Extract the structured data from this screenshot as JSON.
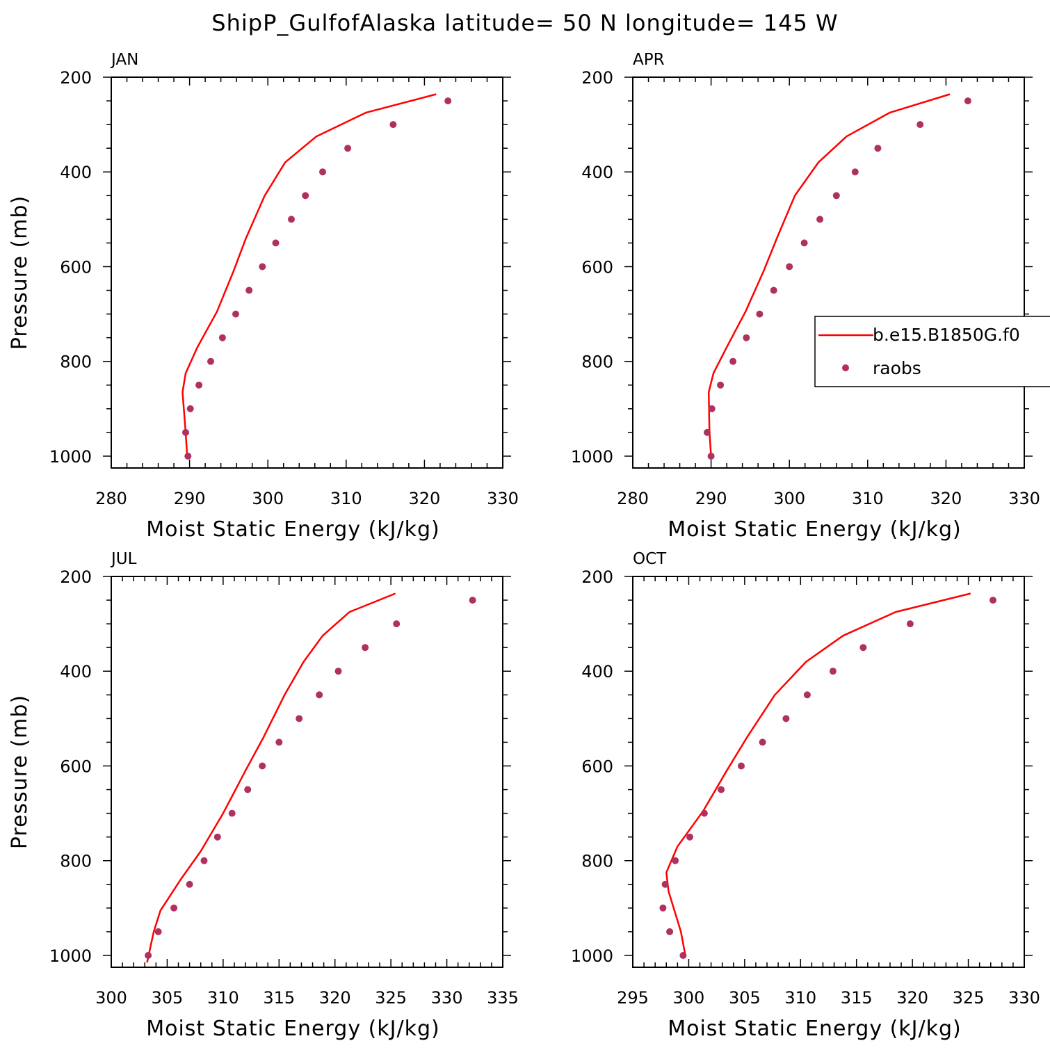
{
  "title": "ShipP_GulfofAlaska  latitude= 50 N longitude= 145 W",
  "colors": {
    "model": "#ff0000",
    "obs": "#b03060",
    "axis": "#000000"
  },
  "legend": {
    "placement": "right-middle, overlapping APR panel",
    "model_label": "b.e15.B1850G.f0",
    "obs_label": "raobs"
  },
  "chart_data": [
    {
      "type": "line+scatter",
      "panel": "JAN",
      "xlabel": "Moist Static Energy (kJ/kg)",
      "ylabel": "Pressure (mb)",
      "xlim": [
        280,
        330
      ],
      "ylim": [
        1025,
        200
      ],
      "y_reversed": true,
      "xticks": [
        "280",
        "290",
        "300",
        "310",
        "320",
        "330"
      ],
      "yticks": [
        "200",
        "400",
        "600",
        "800",
        "1000"
      ],
      "grid": false,
      "model": {
        "p": [
          236,
          275,
          325,
          380,
          450,
          540,
          610,
          695,
          770,
          825,
          865,
          950,
          1000
        ],
        "mse": [
          321.5,
          312.5,
          306.2,
          302.2,
          299.6,
          297.2,
          295.6,
          293.5,
          291.0,
          289.5,
          289.1,
          289.5,
          289.7
        ]
      },
      "obs": {
        "p": [
          250,
          300,
          350,
          400,
          450,
          500,
          550,
          600,
          650,
          700,
          750,
          800,
          850,
          900,
          950,
          1000
        ],
        "mse": [
          323.0,
          316.0,
          310.2,
          307.0,
          304.8,
          303.0,
          301.0,
          299.3,
          297.6,
          295.9,
          294.2,
          292.7,
          291.2,
          290.1,
          289.5,
          289.8
        ]
      }
    },
    {
      "type": "line+scatter",
      "panel": "APR",
      "xlabel": "Moist Static Energy (kJ/kg)",
      "ylabel": "",
      "xlim": [
        280,
        330
      ],
      "ylim": [
        1025,
        200
      ],
      "y_reversed": true,
      "xticks": [
        "280",
        "290",
        "300",
        "310",
        "320",
        "330"
      ],
      "yticks": [
        "200",
        "400",
        "600",
        "800",
        "1000"
      ],
      "grid": false,
      "model": {
        "p": [
          236,
          275,
          325,
          380,
          450,
          540,
          610,
          695,
          770,
          825,
          865,
          950,
          1000
        ],
        "mse": [
          320.5,
          312.8,
          307.3,
          303.7,
          300.7,
          298.4,
          296.7,
          294.4,
          292.0,
          290.3,
          289.7,
          289.8,
          290.0
        ]
      },
      "obs": {
        "p": [
          250,
          300,
          350,
          400,
          450,
          500,
          550,
          600,
          650,
          700,
          750,
          800,
          850,
          900,
          950,
          1000
        ],
        "mse": [
          322.8,
          316.7,
          311.3,
          308.4,
          306.0,
          303.9,
          301.9,
          300.0,
          298.0,
          296.2,
          294.5,
          292.8,
          291.2,
          290.1,
          289.5,
          290.0
        ]
      }
    },
    {
      "type": "line+scatter",
      "panel": "JUL",
      "xlabel": "Moist Static Energy (kJ/kg)",
      "ylabel": "Pressure (mb)",
      "xlim": [
        300,
        335
      ],
      "ylim": [
        1025,
        200
      ],
      "y_reversed": true,
      "xticks": [
        "300",
        "305",
        "310",
        "315",
        "320",
        "325",
        "330",
        "335"
      ],
      "yticks": [
        "200",
        "400",
        "600",
        "800",
        "1000"
      ],
      "grid": false,
      "model": {
        "p": [
          236,
          275,
          325,
          380,
          450,
          540,
          610,
          700,
          780,
          840,
          880,
          905,
          950,
          1015
        ],
        "mse": [
          325.4,
          321.3,
          318.9,
          317.2,
          315.5,
          313.6,
          312.0,
          310.0,
          308.0,
          306.2,
          305.1,
          304.4,
          303.8,
          303.2
        ]
      },
      "obs": {
        "p": [
          250,
          300,
          350,
          400,
          450,
          500,
          550,
          600,
          650,
          700,
          750,
          800,
          850,
          900,
          950,
          1000
        ],
        "mse": [
          332.3,
          325.5,
          322.7,
          320.3,
          318.6,
          316.8,
          315.0,
          313.5,
          312.2,
          310.8,
          309.5,
          308.3,
          307.0,
          305.6,
          304.2,
          303.3
        ]
      }
    },
    {
      "type": "line+scatter",
      "panel": "OCT",
      "xlabel": "Moist Static Energy (kJ/kg)",
      "ylabel": "",
      "xlim": [
        295,
        330
      ],
      "ylim": [
        1025,
        200
      ],
      "y_reversed": true,
      "xticks": [
        "295",
        "300",
        "305",
        "310",
        "315",
        "320",
        "325",
        "330"
      ],
      "yticks": [
        "200",
        "400",
        "600",
        "800",
        "1000"
      ],
      "grid": false,
      "model": {
        "p": [
          236,
          275,
          325,
          380,
          450,
          540,
          610,
          695,
          770,
          825,
          865,
          950,
          1000
        ],
        "mse": [
          325.2,
          318.5,
          313.8,
          310.5,
          307.7,
          305.2,
          303.4,
          301.3,
          299.0,
          298.0,
          298.2,
          299.3,
          299.7
        ]
      },
      "obs": {
        "p": [
          250,
          300,
          350,
          400,
          450,
          500,
          550,
          600,
          650,
          700,
          750,
          800,
          850,
          900,
          950,
          1000
        ],
        "mse": [
          327.2,
          319.8,
          315.6,
          312.9,
          310.6,
          308.7,
          306.6,
          304.7,
          302.9,
          301.4,
          300.1,
          298.8,
          297.9,
          297.7,
          298.3,
          299.5
        ]
      }
    }
  ]
}
